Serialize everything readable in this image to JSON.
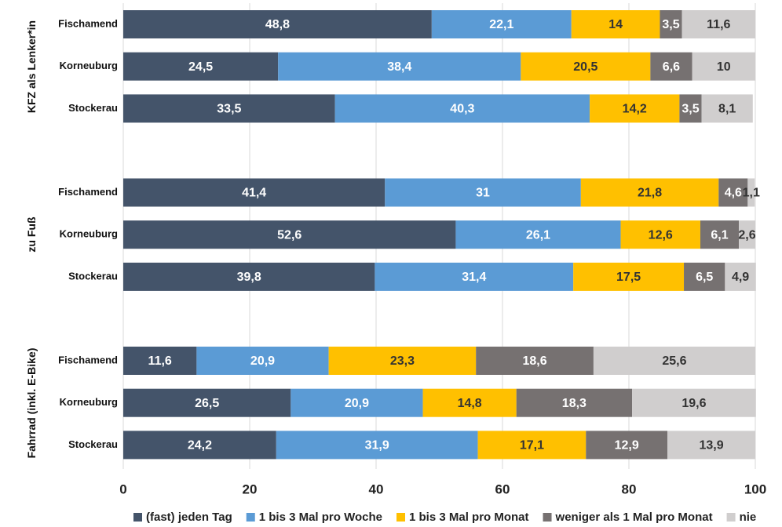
{
  "chart_data": {
    "type": "bar",
    "orientation": "horizontal",
    "stacked": true,
    "groups": [
      {
        "name": "KFZ als Lenker*in",
        "categories": [
          "Fischamend",
          "Korneuburg",
          "Stockerau"
        ]
      },
      {
        "name": "zu Fuß",
        "categories": [
          "Fischamend",
          "Korneuburg",
          "Stockerau"
        ]
      },
      {
        "name": "Fahrrad (inkl. E-Bike)",
        "categories": [
          "Fischamend",
          "Korneuburg",
          "Stockerau"
        ]
      }
    ],
    "series": [
      {
        "name": "(fast) jeden Tag",
        "color": "#44546a",
        "label_color": "#ffffff",
        "values": [
          48.8,
          24.5,
          33.5,
          41.4,
          52.6,
          39.8,
          11.6,
          26.5,
          24.2
        ],
        "value_labels": [
          "48,8",
          "24,5",
          "33,5",
          "41,4",
          "52,6",
          "39,8",
          "11,6",
          "26,5",
          "24,2"
        ]
      },
      {
        "name": "1 bis 3 Mal pro Woche",
        "color": "#5b9bd5",
        "label_color": "#ffffff",
        "values": [
          22.1,
          38.4,
          40.3,
          31,
          26.1,
          31.4,
          20.9,
          20.9,
          31.9
        ],
        "value_labels": [
          "22,1",
          "38,4",
          "40,3",
          "31",
          "26,1",
          "31,4",
          "20,9",
          "20,9",
          "31,9"
        ]
      },
      {
        "name": "1 bis 3 Mal pro Monat",
        "color": "#ffc000",
        "label_color": "#333333",
        "values": [
          14,
          20.5,
          14.2,
          21.8,
          12.6,
          17.5,
          23.3,
          14.8,
          17.1
        ],
        "value_labels": [
          "14",
          "20,5",
          "14,2",
          "21,8",
          "12,6",
          "17,5",
          "23,3",
          "14,8",
          "17,1"
        ]
      },
      {
        "name": "weniger als 1 Mal pro Monat",
        "color": "#767171",
        "label_color": "#ffffff",
        "values": [
          3.5,
          6.6,
          3.5,
          4.6,
          6.1,
          6.5,
          18.6,
          18.3,
          12.9
        ],
        "value_labels": [
          "3,5",
          "6,6",
          "3,5",
          "4,6",
          "6,1",
          "6,5",
          "18,6",
          "18,3",
          "12,9"
        ]
      },
      {
        "name": "nie",
        "color": "#d0cece",
        "label_color": "#333333",
        "values": [
          11.6,
          10,
          8.1,
          1.1,
          2.6,
          4.9,
          25.6,
          19.6,
          13.9
        ],
        "value_labels": [
          "11,6",
          "10",
          "8,1",
          "1,1",
          "2,6",
          "4,9",
          "25,6",
          "19,6",
          "13,9"
        ]
      }
    ],
    "xlim": [
      0,
      100
    ],
    "xticks": [
      0,
      20,
      40,
      60,
      80,
      100
    ],
    "grid": true,
    "legend": "bottom"
  }
}
